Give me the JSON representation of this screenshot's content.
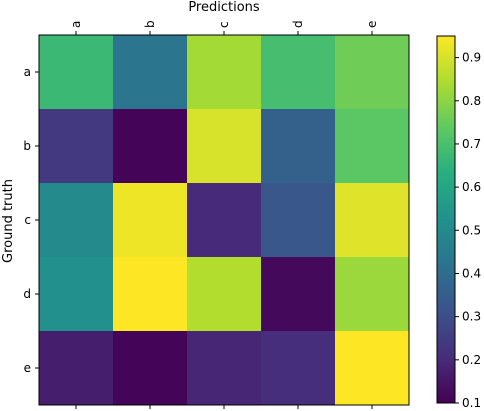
{
  "chart_data": {
    "type": "heatmap",
    "title": "",
    "xlabel": "Predictions",
    "ylabel": "Ground truth",
    "x_labels": [
      "a",
      "b",
      "c",
      "d",
      "e"
    ],
    "y_labels": [
      "a",
      "b",
      "c",
      "d",
      "e"
    ],
    "values": [
      [
        0.67,
        0.43,
        0.83,
        0.69,
        0.76
      ],
      [
        0.24,
        0.11,
        0.9,
        0.36,
        0.73
      ],
      [
        0.5,
        0.93,
        0.2,
        0.33,
        0.91
      ],
      [
        0.52,
        0.96,
        0.85,
        0.12,
        0.82
      ],
      [
        0.17,
        0.11,
        0.19,
        0.21,
        0.95
      ]
    ],
    "colormap": "viridis",
    "vmin": 0.1,
    "vmax": 0.95,
    "colorbar_ticks": [
      "0.1",
      "0.2",
      "0.3",
      "0.4",
      "0.5",
      "0.6",
      "0.7",
      "0.8",
      "0.9"
    ],
    "x_ticks_position": "top",
    "grid": false,
    "legend": "colorbar-right"
  }
}
